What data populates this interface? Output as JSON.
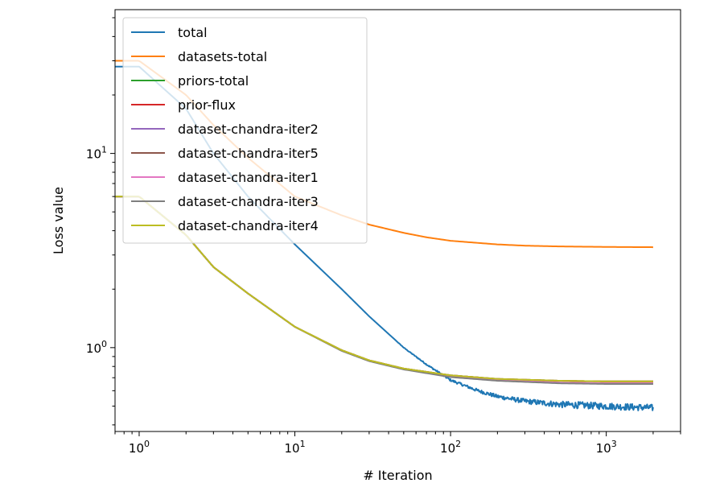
{
  "chart_data": {
    "type": "line",
    "title": "",
    "xlabel": "# Iteration",
    "ylabel": "Loss value",
    "xscale": "log",
    "yscale": "log",
    "xlim": [
      0.7,
      3000
    ],
    "ylim": [
      0.37,
      55
    ],
    "grid": false,
    "legend_position": "top-left",
    "x_ticks": [
      {
        "value": 1,
        "base": "10",
        "exp": "0"
      },
      {
        "value": 10,
        "base": "10",
        "exp": "1"
      },
      {
        "value": 100,
        "base": "10",
        "exp": "2"
      },
      {
        "value": 1000,
        "base": "10",
        "exp": "3"
      }
    ],
    "y_ticks": [
      {
        "value": 1,
        "base": "10",
        "exp": "0"
      },
      {
        "value": 10,
        "base": "10",
        "exp": "1"
      }
    ],
    "series": [
      {
        "name": "total",
        "color": "#1f77b4",
        "noise": 0.04,
        "x": [
          0.7,
          1,
          2,
          3,
          5,
          10,
          20,
          30,
          50,
          70,
          100,
          150,
          200,
          300,
          500,
          1000,
          2000
        ],
        "y": [
          28,
          28,
          17,
          10,
          6,
          3.4,
          2.0,
          1.45,
          1.0,
          0.82,
          0.68,
          0.6,
          0.56,
          0.53,
          0.51,
          0.5,
          0.49
        ]
      },
      {
        "name": "datasets-total",
        "color": "#ff7f0e",
        "noise": 0,
        "x": [
          0.7,
          1,
          2,
          3,
          5,
          10,
          20,
          30,
          50,
          70,
          100,
          200,
          300,
          500,
          1000,
          2000
        ],
        "y": [
          30,
          30,
          20,
          14,
          9.5,
          6,
          4.8,
          4.3,
          3.9,
          3.7,
          3.55,
          3.4,
          3.35,
          3.32,
          3.3,
          3.29
        ]
      },
      {
        "name": "priors-total",
        "color": "#2ca02c",
        "noise": 0,
        "x": [
          0.7,
          1,
          2,
          3,
          5,
          10,
          20,
          30,
          50,
          100,
          200,
          500,
          1000,
          2000
        ],
        "y": [
          6,
          6,
          3.8,
          2.6,
          1.9,
          1.28,
          0.97,
          0.86,
          0.78,
          0.72,
          0.69,
          0.675,
          0.67,
          0.67
        ]
      },
      {
        "name": "prior-flux",
        "color": "#d62728",
        "noise": 0,
        "x": [
          0.7,
          1,
          2,
          3,
          5,
          10,
          20,
          30,
          50,
          100,
          200,
          500,
          1000,
          2000
        ],
        "y": [
          6,
          6,
          3.8,
          2.6,
          1.9,
          1.28,
          0.97,
          0.86,
          0.78,
          0.72,
          0.69,
          0.675,
          0.67,
          0.67
        ]
      },
      {
        "name": "dataset-chandra-iter2",
        "color": "#9467bd",
        "noise": 0,
        "x": [
          0.7,
          1,
          2,
          3,
          5,
          10,
          20,
          30,
          50,
          100,
          200,
          500,
          1000,
          2000
        ],
        "y": [
          6,
          6,
          3.8,
          2.6,
          1.9,
          1.28,
          0.965,
          0.855,
          0.775,
          0.71,
          0.68,
          0.66,
          0.655,
          0.655
        ]
      },
      {
        "name": "dataset-chandra-iter5",
        "color": "#8c564b",
        "noise": 0,
        "x": [
          0.7,
          1,
          2,
          3,
          5,
          10,
          20,
          30,
          50,
          100,
          200,
          500,
          1000,
          2000
        ],
        "y": [
          6,
          6,
          3.8,
          2.6,
          1.9,
          1.28,
          0.965,
          0.855,
          0.775,
          0.71,
          0.68,
          0.66,
          0.655,
          0.655
        ]
      },
      {
        "name": "dataset-chandra-iter1",
        "color": "#e377c2",
        "noise": 0,
        "x": [
          0.7,
          1,
          2,
          3,
          5,
          10,
          20,
          30,
          50,
          100,
          200,
          500,
          1000,
          2000
        ],
        "y": [
          6,
          6,
          3.8,
          2.6,
          1.9,
          1.28,
          0.965,
          0.855,
          0.775,
          0.71,
          0.68,
          0.66,
          0.655,
          0.655
        ]
      },
      {
        "name": "dataset-chandra-iter3",
        "color": "#7f7f7f",
        "noise": 0,
        "x": [
          0.7,
          1,
          2,
          3,
          5,
          10,
          20,
          30,
          50,
          100,
          200,
          500,
          1000,
          2000
        ],
        "y": [
          6,
          6,
          3.8,
          2.6,
          1.9,
          1.28,
          0.962,
          0.852,
          0.772,
          0.705,
          0.675,
          0.655,
          0.65,
          0.65
        ]
      },
      {
        "name": "dataset-chandra-iter4",
        "color": "#bcbd22",
        "noise": 0,
        "x": [
          0.7,
          1,
          2,
          3,
          5,
          10,
          20,
          30,
          50,
          100,
          200,
          500,
          1000,
          2000
        ],
        "y": [
          6,
          6,
          3.8,
          2.6,
          1.9,
          1.28,
          0.97,
          0.86,
          0.78,
          0.72,
          0.69,
          0.675,
          0.67,
          0.67
        ]
      }
    ]
  }
}
